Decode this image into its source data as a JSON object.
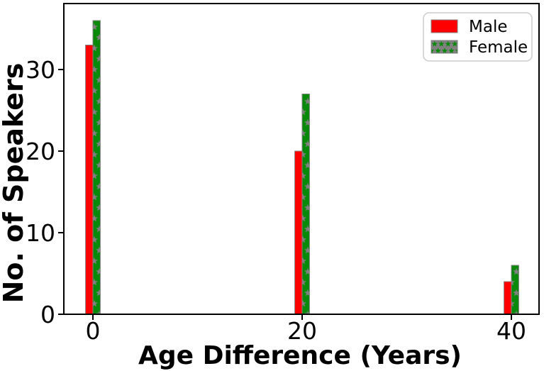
{
  "chart_data": {
    "type": "bar",
    "title": "",
    "xlabel": "Age Difference (Years)",
    "ylabel": "No. of Speakers",
    "categories": [
      0,
      20,
      40
    ],
    "series": [
      {
        "name": "Male",
        "values": [
          33,
          20,
          4
        ],
        "color": "#ff0000",
        "hatch": "none"
      },
      {
        "name": "Female",
        "values": [
          36,
          27,
          6
        ],
        "color": "#098909",
        "hatch": "star",
        "hatch_color": "#808080"
      }
    ],
    "xticks": [
      "0",
      "20",
      "40"
    ],
    "yticks": [
      "0",
      "10",
      "20",
      "30"
    ],
    "xlim": [
      -2.8,
      42.6
    ],
    "ylim": [
      0,
      38.1
    ],
    "grid": false,
    "bar_edge_color": "#808080",
    "bar_width_units": 0.7,
    "legend": {
      "position": "upper right",
      "labels": [
        "Male",
        "Female"
      ],
      "border_color": "#cccccc",
      "background": "#ffffff"
    }
  }
}
